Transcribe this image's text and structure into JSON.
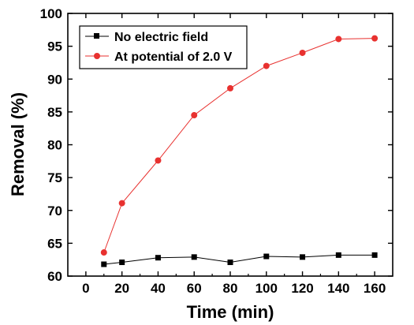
{
  "chart_data": {
    "type": "line",
    "xlabel": "Time (min)",
    "ylabel": "Removal (%)",
    "xlim": [
      -10,
      170
    ],
    "ylim": [
      60,
      100
    ],
    "xticks": [
      0,
      20,
      40,
      60,
      80,
      100,
      120,
      140,
      160
    ],
    "yticks": [
      60,
      65,
      70,
      75,
      80,
      85,
      90,
      95,
      100
    ],
    "grid": false,
    "legend_position": "top-left",
    "series": [
      {
        "name": "No electric field",
        "color": "#000000",
        "marker": "square",
        "x": [
          10,
          20,
          40,
          60,
          80,
          100,
          120,
          140,
          160
        ],
        "y": [
          61.8,
          62.1,
          62.8,
          62.9,
          62.1,
          63.0,
          62.9,
          63.2,
          63.2
        ]
      },
      {
        "name": "At potential of 2.0 V",
        "color": "#e8312f",
        "marker": "circle",
        "x": [
          10,
          20,
          40,
          60,
          80,
          100,
          120,
          140,
          160
        ],
        "y": [
          63.6,
          71.1,
          77.6,
          84.5,
          88.6,
          92.0,
          94.0,
          96.1,
          96.2
        ]
      }
    ]
  }
}
